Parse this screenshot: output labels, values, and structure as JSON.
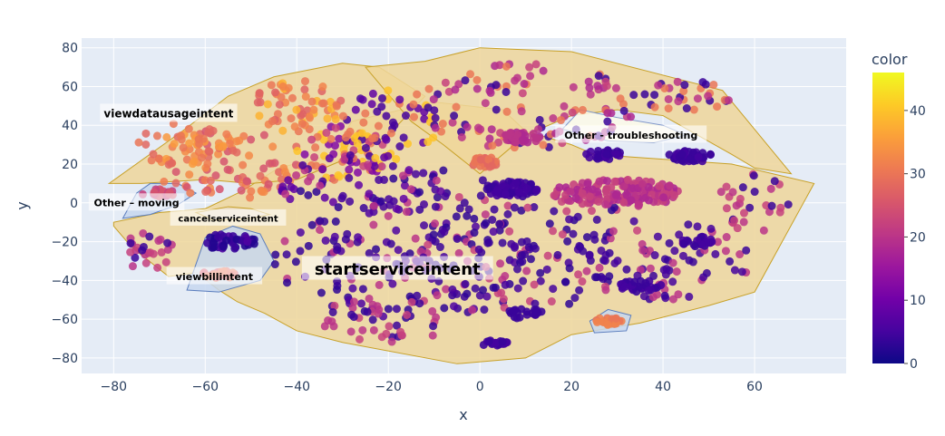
{
  "chart_data": {
    "type": "scatter",
    "xlabel": "x",
    "ylabel": "y",
    "xlim": [
      -87,
      80
    ],
    "ylim": [
      -88,
      85
    ],
    "x_ticks": [
      -80,
      -60,
      -40,
      -20,
      0,
      20,
      40,
      60
    ],
    "y_ticks": [
      -80,
      -60,
      -40,
      -20,
      0,
      20,
      40,
      60,
      80
    ],
    "x_tick_labels": [
      "−80",
      "−60",
      "−40",
      "−20",
      "0",
      "20",
      "40",
      "60"
    ],
    "y_tick_labels": [
      "−80",
      "−60",
      "−40",
      "−20",
      "0",
      "20",
      "40",
      "60",
      "80"
    ],
    "grid": true,
    "colorbar": {
      "title": "color",
      "min": 0,
      "max": 46,
      "ticks": [
        0,
        10,
        20,
        30,
        40
      ],
      "tick_labels": [
        "0",
        "10",
        "20",
        "30",
        "40"
      ],
      "colorscale": [
        "#0d0887",
        "#46039f",
        "#7201a8",
        "#9c179e",
        "#bd3786",
        "#d8576b",
        "#ed7953",
        "#fb9f3a",
        "#fdca26",
        "#f0f921"
      ]
    },
    "clusters": [
      {
        "label": "startserviceintent",
        "label_at": [
          -18,
          -34
        ],
        "label_size": 18,
        "fill": "#efd69a",
        "stroke": "#c8a128",
        "hull": [
          [
            -80,
            -12
          ],
          [
            -76,
            -23
          ],
          [
            -68,
            -38
          ],
          [
            -62,
            -36
          ],
          [
            -57,
            -45
          ],
          [
            -53,
            -51
          ],
          [
            -47,
            -57
          ],
          [
            -40,
            -66
          ],
          [
            -30,
            -72
          ],
          [
            -5,
            -83
          ],
          [
            10,
            -80
          ],
          [
            20,
            -68
          ],
          [
            35,
            -62
          ],
          [
            50,
            -53
          ],
          [
            60,
            -46
          ],
          [
            73,
            10
          ],
          [
            55,
            20
          ],
          [
            25,
            25
          ],
          [
            20,
            30
          ],
          [
            10,
            37
          ],
          [
            5,
            48
          ],
          [
            -10,
            52
          ],
          [
            -28,
            42
          ],
          [
            -32,
            25
          ],
          [
            -44,
            18
          ],
          [
            -52,
            6
          ],
          [
            -60,
            -3
          ],
          [
            -70,
            -5
          ],
          [
            -80,
            -10
          ]
        ]
      },
      {
        "label": "viewdatausageintent",
        "label_at": [
          -68,
          46
        ],
        "label_size": 12,
        "fill": "#efd69a",
        "stroke": "#c8a128",
        "hull": [
          [
            -81,
            10
          ],
          [
            -65,
            37
          ],
          [
            -55,
            55
          ],
          [
            -45,
            65
          ],
          [
            -30,
            72
          ],
          [
            -22,
            70
          ],
          [
            -12,
            55
          ],
          [
            -20,
            35
          ],
          [
            -30,
            22
          ],
          [
            -40,
            12
          ],
          [
            -50,
            10
          ],
          [
            -60,
            12
          ],
          [
            -74,
            10
          ]
        ]
      },
      {
        "label": "",
        "fill": "#efd69a",
        "stroke": "#c8a128",
        "hull": [
          [
            -25,
            70
          ],
          [
            -12,
            73
          ],
          [
            0,
            80
          ],
          [
            20,
            78
          ],
          [
            53,
            58
          ],
          [
            68,
            15
          ],
          [
            60,
            18
          ],
          [
            55,
            25
          ],
          [
            40,
            45
          ],
          [
            30,
            48
          ],
          [
            20,
            45
          ],
          [
            10,
            35
          ],
          [
            0,
            15
          ],
          [
            -8,
            30
          ],
          [
            -15,
            42
          ]
        ]
      },
      {
        "label": "Other - troubleshooting",
        "label_at": [
          33,
          35
        ],
        "label_size": 11,
        "fill": "#fdfae8",
        "stroke": "#7e95c9",
        "hull": [
          [
            18,
            38
          ],
          [
            22,
            48
          ],
          [
            30,
            44
          ],
          [
            40,
            40
          ],
          [
            45,
            35
          ],
          [
            38,
            31
          ],
          [
            28,
            32
          ]
        ]
      },
      {
        "label": "Other – moving",
        "label_at": [
          -75,
          0
        ],
        "label_size": 11,
        "fill": "#c7d7ee",
        "stroke": "#5b7dbd",
        "hull": [
          [
            -78,
            -8
          ],
          [
            -75,
            5
          ],
          [
            -72,
            10
          ],
          [
            -66,
            10
          ],
          [
            -62,
            5
          ],
          [
            -66,
            -1
          ],
          [
            -72,
            -6
          ]
        ]
      },
      {
        "label": "cancelserviceintent",
        "label_at": [
          -55,
          -8
        ],
        "label_size": 10,
        "fill": "#e8d9c2",
        "stroke": "#c8a128",
        "hull": [
          [
            -62,
            -5
          ],
          [
            -58,
            -9
          ],
          [
            -50,
            -8
          ],
          [
            -46,
            -6
          ],
          [
            -50,
            -3
          ],
          [
            -55,
            -2
          ]
        ]
      },
      {
        "label": "viewbillintent",
        "label_at": [
          -58,
          -38
        ],
        "label_size": 11,
        "fill": "#c7d7ee",
        "stroke": "#5b7dbd",
        "hull": [
          [
            -64,
            -45
          ],
          [
            -60,
            -18
          ],
          [
            -54,
            -12
          ],
          [
            -48,
            -16
          ],
          [
            -45,
            -30
          ],
          [
            -48,
            -40
          ],
          [
            -57,
            -46
          ]
        ]
      },
      {
        "label": "",
        "fill": "#c7d7ee",
        "stroke": "#5b7dbd",
        "hull": [
          [
            25,
            -67
          ],
          [
            32,
            -66
          ],
          [
            33,
            -58
          ],
          [
            28,
            -55
          ],
          [
            24,
            -61
          ]
        ]
      }
    ],
    "point_groups": [
      {
        "cx": -55,
        "cy": 20,
        "rx": 18,
        "ry": 18,
        "n": 90,
        "colors": [
          28,
          31,
          25,
          33
        ]
      },
      {
        "cx": -65,
        "cy": 30,
        "rx": 10,
        "ry": 12,
        "n": 40,
        "colors": [
          30,
          28,
          35
        ]
      },
      {
        "cx": -40,
        "cy": 50,
        "rx": 10,
        "ry": 14,
        "n": 60,
        "colors": [
          32,
          30,
          27,
          38
        ]
      },
      {
        "cx": -30,
        "cy": 25,
        "rx": 10,
        "ry": 15,
        "n": 60,
        "colors": [
          22,
          30,
          12,
          40
        ]
      },
      {
        "cx": -20,
        "cy": 40,
        "rx": 12,
        "ry": 18,
        "n": 60,
        "colors": [
          5,
          8,
          30,
          40
        ]
      },
      {
        "cx": -25,
        "cy": 10,
        "rx": 20,
        "ry": 15,
        "n": 80,
        "colors": [
          5,
          3,
          8,
          20
        ]
      },
      {
        "cx": -15,
        "cy": -30,
        "rx": 30,
        "ry": 30,
        "n": 180,
        "colors": [
          4,
          3,
          6,
          20
        ]
      },
      {
        "cx": 10,
        "cy": -20,
        "rx": 25,
        "ry": 35,
        "n": 120,
        "colors": [
          4,
          3,
          5,
          22
        ]
      },
      {
        "cx": 40,
        "cy": -30,
        "rx": 20,
        "ry": 20,
        "n": 80,
        "colors": [
          4,
          5,
          20
        ]
      },
      {
        "cx": 10,
        "cy": 50,
        "rx": 25,
        "ry": 22,
        "n": 110,
        "colors": [
          4,
          18,
          20,
          22,
          30
        ]
      },
      {
        "cx": 45,
        "cy": 55,
        "rx": 10,
        "ry": 8,
        "n": 30,
        "colors": [
          4,
          20,
          30
        ]
      },
      {
        "cx": 60,
        "cy": 0,
        "rx": 8,
        "ry": 15,
        "n": 30,
        "colors": [
          20,
          22,
          4
        ]
      },
      {
        "cx": -72,
        "cy": -25,
        "rx": 6,
        "ry": 10,
        "n": 25,
        "colors": [
          20,
          22,
          4
        ]
      },
      {
        "cx": -20,
        "cy": -60,
        "rx": 15,
        "ry": 12,
        "n": 40,
        "colors": [
          4,
          20,
          22
        ]
      }
    ],
    "dense_blobs": [
      {
        "cx": 30,
        "cy": 5,
        "rx": 14,
        "ry": 7,
        "n": 160,
        "colors": [
          18,
          20,
          22
        ]
      },
      {
        "cx": 7,
        "cy": 7,
        "rx": 6,
        "ry": 4,
        "n": 60,
        "colors": [
          4,
          5
        ]
      },
      {
        "cx": 46,
        "cy": 24,
        "rx": 5,
        "ry": 3,
        "n": 50,
        "colors": [
          4,
          5
        ]
      },
      {
        "cx": 27,
        "cy": 25,
        "rx": 4,
        "ry": 2.5,
        "n": 35,
        "colors": [
          4,
          5
        ]
      },
      {
        "cx": 9,
        "cy": 34,
        "rx": 5,
        "ry": 3,
        "n": 35,
        "colors": [
          18,
          20
        ]
      },
      {
        "cx": 1,
        "cy": 21,
        "rx": 3,
        "ry": 3,
        "n": 30,
        "colors": [
          28,
          30
        ]
      },
      {
        "cx": 28,
        "cy": -61,
        "rx": 3,
        "ry": 2,
        "n": 25,
        "colors": [
          30,
          32
        ]
      },
      {
        "cx": -55,
        "cy": -20,
        "rx": 6,
        "ry": 4,
        "n": 40,
        "colors": [
          2,
          4,
          6
        ]
      },
      {
        "cx": -57,
        "cy": -37,
        "rx": 4,
        "ry": 2,
        "n": 25,
        "colors": [
          28,
          30,
          25
        ]
      },
      {
        "cx": -70,
        "cy": 5,
        "rx": 4,
        "ry": 2,
        "n": 20,
        "colors": [
          22,
          25
        ]
      },
      {
        "cx": 35,
        "cy": -43,
        "rx": 5,
        "ry": 3,
        "n": 30,
        "colors": [
          4,
          5
        ]
      },
      {
        "cx": 48,
        "cy": -20,
        "rx": 4,
        "ry": 3,
        "n": 25,
        "colors": [
          4,
          5
        ]
      },
      {
        "cx": 3,
        "cy": -72,
        "rx": 3,
        "ry": 2,
        "n": 20,
        "colors": [
          4,
          5
        ]
      },
      {
        "cx": 10,
        "cy": -57,
        "rx": 4,
        "ry": 3,
        "n": 20,
        "colors": [
          4
        ]
      }
    ]
  }
}
